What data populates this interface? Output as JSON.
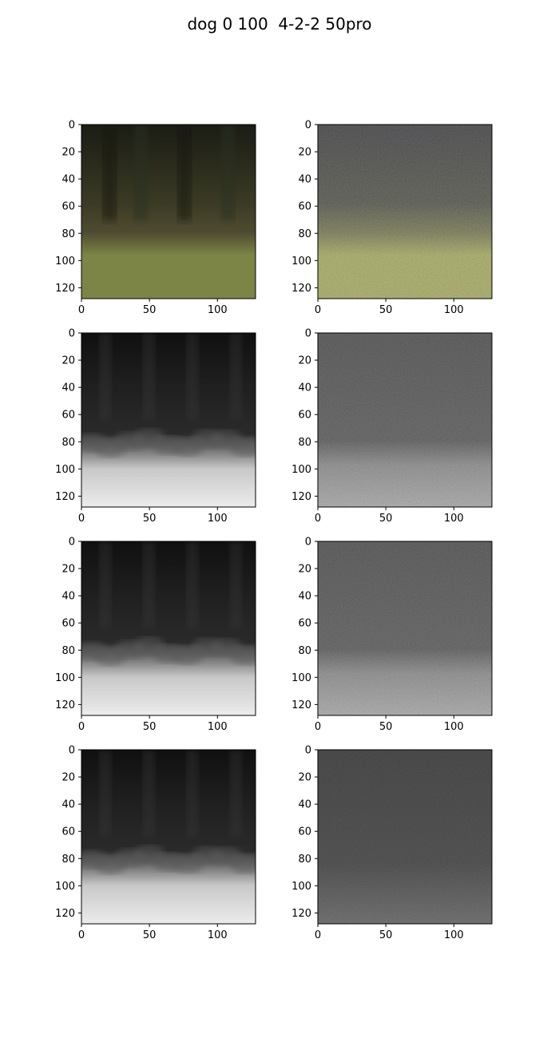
{
  "figure": {
    "title": "dog 0 100  4-2-2 50pro"
  },
  "chart_data": {
    "type": "heatmap",
    "grid": {
      "rows": 4,
      "cols": 2
    },
    "axes_shared": {
      "xlim": [
        0,
        128
      ],
      "ylim": [
        128,
        0
      ],
      "xticks": [
        0,
        50,
        100
      ],
      "yticks": [
        0,
        20,
        40,
        60,
        80,
        100,
        120
      ]
    },
    "panels": [
      {
        "id": "r1c1",
        "row": 1,
        "col": 1,
        "colormap": "rgb",
        "content": "blurred color image: dark green forest top, grass field bottom",
        "colors": {
          "top": "#1b1c15",
          "mid": "#3a3a24",
          "horizon": "#4f4b30",
          "bottom": "#7c8446"
        }
      },
      {
        "id": "r1c2",
        "row": 1,
        "col": 2,
        "colormap": "rgb",
        "content": "noisy color reconstruction of the same scene",
        "colors": {
          "top": "#17161a",
          "mid": "#2d3022",
          "horizon": "#5d5e2c",
          "bottom": "#9aa040"
        }
      },
      {
        "id": "r2c1",
        "row": 2,
        "col": 1,
        "colormap": "gray",
        "content": "blurred grayscale channel"
      },
      {
        "id": "r2c2",
        "row": 2,
        "col": 2,
        "colormap": "gray",
        "content": "noisy grayscale channel"
      },
      {
        "id": "r3c1",
        "row": 3,
        "col": 1,
        "colormap": "gray",
        "content": "blurred grayscale channel"
      },
      {
        "id": "r3c2",
        "row": 3,
        "col": 2,
        "colormap": "gray",
        "content": "noisy grayscale channel"
      },
      {
        "id": "r4c1",
        "row": 4,
        "col": 1,
        "colormap": "gray",
        "content": "blurred grayscale channel"
      },
      {
        "id": "r4c2",
        "row": 4,
        "col": 2,
        "colormap": "gray",
        "content": "noisy grayscale channel"
      }
    ]
  }
}
